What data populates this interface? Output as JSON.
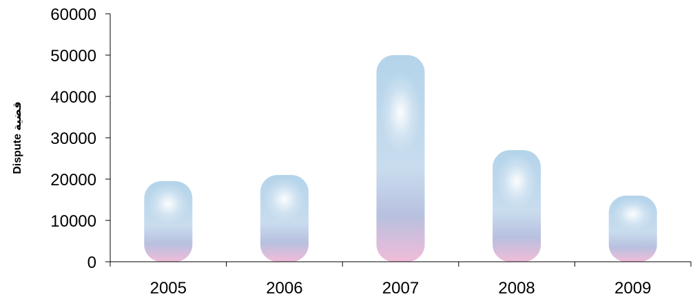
{
  "chart_data": {
    "type": "bar",
    "title": "",
    "xlabel": "",
    "ylabel": "Dispute قضية",
    "categories": [
      "2005",
      "2006",
      "2007",
      "2008",
      "2009"
    ],
    "values": [
      19500,
      21000,
      50000,
      27000,
      16000
    ],
    "ylim": [
      0,
      60000
    ],
    "yticks": [
      "0",
      "10000",
      "20000",
      "30000",
      "40000",
      "50000",
      "60000"
    ],
    "grid": false,
    "legend": "none",
    "colors": {
      "bar_top": "#b4d4ea",
      "bar_highlight": "#ffffff",
      "bar_mid": "#b8c0df",
      "bar_bottom": "#f0bcd8",
      "axis": "#000000"
    }
  }
}
